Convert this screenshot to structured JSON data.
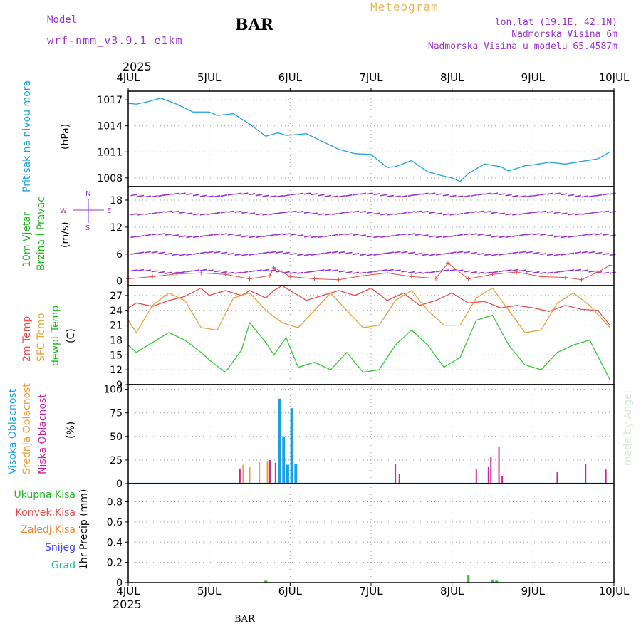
{
  "header": {
    "model_label": "Model",
    "model_name": "wrf-nmm_v3.9.1 e1km",
    "station": "BAR",
    "meteogram": "Meteogram",
    "lonlat": "lon,lat (19.1E, 42.1N)",
    "elev": "Nadmorska Visina 6m",
    "elev_model": "Nadmorska Visina u modelu 65.4587m",
    "year_top": "2025",
    "year_bottom": "2025",
    "footer_station": "BAR",
    "credit": "made by Angel"
  },
  "colors": {
    "pressure": "#1ba1e2",
    "wind_label": "#22b822",
    "temp2m": "#e84c4c",
    "sfc": "#e6a23c",
    "dewpt": "#33cc33",
    "high": "#1ba1e2",
    "mid": "#e6a23c",
    "low": "#cc2299",
    "purple": "#9933cc"
  },
  "chart_data": [
    {
      "type": "line",
      "panel": "pressure",
      "ylabels": [
        "Pritisak na nivou mora",
        "(hPa)"
      ],
      "x_ticks": [
        "4JUL",
        "5JUL",
        "6JUL",
        "7JUL",
        "8JUL",
        "9JUL",
        "10JUL"
      ],
      "y_ticks": [
        "1017",
        "1014",
        "1011",
        "1008"
      ],
      "ylim": [
        1007,
        1018
      ],
      "series": [
        {
          "x": [
            0,
            0.1,
            0.25,
            0.4,
            0.6,
            0.8,
            1.0,
            1.1,
            1.3,
            1.5,
            1.7,
            1.85,
            1.95,
            2.1,
            2.2,
            2.4,
            2.6,
            2.8,
            3.0,
            3.2,
            3.3,
            3.5,
            3.7,
            3.9,
            4.0,
            4.1,
            4.2,
            4.4,
            4.6,
            4.7,
            4.9,
            5.0,
            5.2,
            5.4,
            5.6,
            5.8,
            5.95
          ],
          "y": [
            1016.6,
            1016.5,
            1016.8,
            1017.2,
            1016.5,
            1015.6,
            1015.6,
            1015.2,
            1015.4,
            1014.2,
            1012.8,
            1013.2,
            1012.9,
            1013.0,
            1013.1,
            1012.2,
            1011.3,
            1010.8,
            1010.7,
            1009.2,
            1009.3,
            1010.0,
            1008.7,
            1008.2,
            1008.0,
            1007.6,
            1008.5,
            1009.6,
            1009.3,
            1008.8,
            1009.4,
            1009.5,
            1009.8,
            1009.6,
            1009.9,
            1010.2,
            1011.0
          ]
        }
      ]
    },
    {
      "type": "scatter",
      "panel": "wind",
      "ylabels": [
        "10m Vjetar",
        "Brzina i Pravac",
        "(m/s)"
      ],
      "compass": {
        "north": "N",
        "south": "S",
        "west": "W",
        "east": "E"
      },
      "y_ticks": [
        "18",
        "12",
        "6",
        "0"
      ],
      "ylim": [
        -1,
        21
      ],
      "series": [
        {
          "name": "speed",
          "x": [
            0,
            0.3,
            0.6,
            0.9,
            1.2,
            1.5,
            1.75,
            1.8,
            2.0,
            2.3,
            2.6,
            2.9,
            3.2,
            3.5,
            3.8,
            3.95,
            4.2,
            4.5,
            4.8,
            5.1,
            5.4,
            5.6,
            5.8,
            5.95
          ],
          "y": [
            0.5,
            1.0,
            1.6,
            1.8,
            1.5,
            0.5,
            1.2,
            3.0,
            1.0,
            0.5,
            0.3,
            1.2,
            1.8,
            1.0,
            0.6,
            4.0,
            0.5,
            1.5,
            2.0,
            1.0,
            0.8,
            0.3,
            2.0,
            3.5
          ]
        }
      ]
    },
    {
      "type": "line",
      "panel": "temperature",
      "ylabels": [
        "2m Temp",
        "SFC Temp",
        "dewpt Temp",
        "(C)"
      ],
      "y_ticks": [
        "27",
        "24",
        "21",
        "18",
        "15",
        "12",
        "9"
      ],
      "ylim": [
        9,
        29
      ],
      "series": [
        {
          "name": "2m Temp",
          "x": [
            0,
            0.1,
            0.3,
            0.5,
            0.7,
            0.9,
            1.0,
            1.2,
            1.4,
            1.5,
            1.7,
            1.8,
            1.9,
            2.0,
            2.2,
            2.4,
            2.6,
            2.8,
            3.0,
            3.2,
            3.4,
            3.6,
            3.8,
            4.0,
            4.2,
            4.4,
            4.6,
            4.8,
            5.0,
            5.2,
            5.4,
            5.6,
            5.8,
            5.95
          ],
          "y": [
            24.5,
            25.5,
            24.8,
            26.0,
            26.8,
            28.5,
            27.0,
            28.0,
            27.0,
            28.0,
            26.5,
            28.0,
            29.0,
            28.0,
            26.0,
            27.0,
            28.0,
            27.0,
            28.5,
            26.0,
            27.5,
            25.0,
            26.0,
            27.5,
            25.5,
            25.8,
            24.5,
            25.0,
            24.5,
            23.8,
            25.0,
            24.2,
            24.0,
            21.0
          ]
        },
        {
          "name": "SFC Temp",
          "x": [
            0,
            0.1,
            0.3,
            0.5,
            0.7,
            0.9,
            1.1,
            1.3,
            1.5,
            1.7,
            1.9,
            2.1,
            2.3,
            2.5,
            2.7,
            2.9,
            3.1,
            3.3,
            3.5,
            3.7,
            3.9,
            4.1,
            4.3,
            4.5,
            4.7,
            4.9,
            5.1,
            5.3,
            5.5,
            5.7,
            5.95
          ],
          "y": [
            22.0,
            19.5,
            25.0,
            27.5,
            26.0,
            20.5,
            20.0,
            26.5,
            27.5,
            24.0,
            21.5,
            20.5,
            24.0,
            27.5,
            24.0,
            20.5,
            21.0,
            26.0,
            28.0,
            24.0,
            21.0,
            21.0,
            26.5,
            28.5,
            24.0,
            19.5,
            20.0,
            25.5,
            27.5,
            25.0,
            20.5
          ]
        },
        {
          "name": "dewpt Temp",
          "x": [
            0,
            0.1,
            0.3,
            0.5,
            0.7,
            0.9,
            1.0,
            1.2,
            1.4,
            1.5,
            1.7,
            1.8,
            1.95,
            2.1,
            2.3,
            2.5,
            2.7,
            2.9,
            3.1,
            3.3,
            3.5,
            3.7,
            3.9,
            4.1,
            4.3,
            4.5,
            4.7,
            4.9,
            5.1,
            5.3,
            5.5,
            5.7,
            5.95
          ],
          "y": [
            17.0,
            15.5,
            17.5,
            19.5,
            18.0,
            15.5,
            14.0,
            11.5,
            16.0,
            21.5,
            17.5,
            15.0,
            18.5,
            12.5,
            13.5,
            12.0,
            15.5,
            11.5,
            12.0,
            17.0,
            20.0,
            17.0,
            12.5,
            14.5,
            22.0,
            23.0,
            17.0,
            13.0,
            12.0,
            15.5,
            17.0,
            18.0,
            10.0
          ]
        }
      ]
    },
    {
      "type": "bar",
      "panel": "clouds",
      "ylabels": [
        "Visoka Oblacnost",
        "Srednja Oblacnost",
        "Niska Oblacnost",
        "(%)"
      ],
      "y_ticks": [
        "100",
        "75",
        "50",
        "25",
        "0"
      ],
      "ylim": [
        0,
        105
      ],
      "series": [
        {
          "name": "Visoka Oblacnost",
          "x": [
            1.87,
            1.92,
            1.97,
            2.02,
            2.07
          ],
          "values": [
            90,
            50,
            20,
            80,
            21
          ]
        },
        {
          "name": "Srednja Oblacnost",
          "x": [
            1.42,
            1.5,
            1.62,
            1.72
          ],
          "values": [
            20,
            18,
            23,
            24
          ]
        },
        {
          "name": "Niska Oblacnost",
          "x": [
            1.38,
            1.75,
            1.82,
            3.3,
            3.35,
            4.3,
            4.45,
            4.48,
            4.58,
            4.62,
            5.3,
            5.65,
            5.9
          ],
          "values": [
            16,
            25,
            22,
            21,
            10,
            15,
            18,
            28,
            39,
            8,
            12,
            21,
            15
          ]
        }
      ]
    },
    {
      "type": "bar",
      "panel": "precip",
      "ylabels": [
        "1hr Precip (mm)"
      ],
      "legend": [
        "Ukupna Kisa",
        "Konvek.Kisa",
        "Zaledj.Kisa",
        "Snijeg",
        "Grad"
      ],
      "y_ticks": [
        "0.8",
        "0.6",
        "0.4",
        "0.2",
        "0"
      ],
      "ylim": [
        0,
        0.98
      ],
      "series": [
        {
          "name": "Ukupna Kisa",
          "x": [
            1.7,
            4.2,
            4.5,
            4.55
          ],
          "values": [
            0.02,
            0.07,
            0.03,
            0.02
          ]
        }
      ]
    }
  ]
}
